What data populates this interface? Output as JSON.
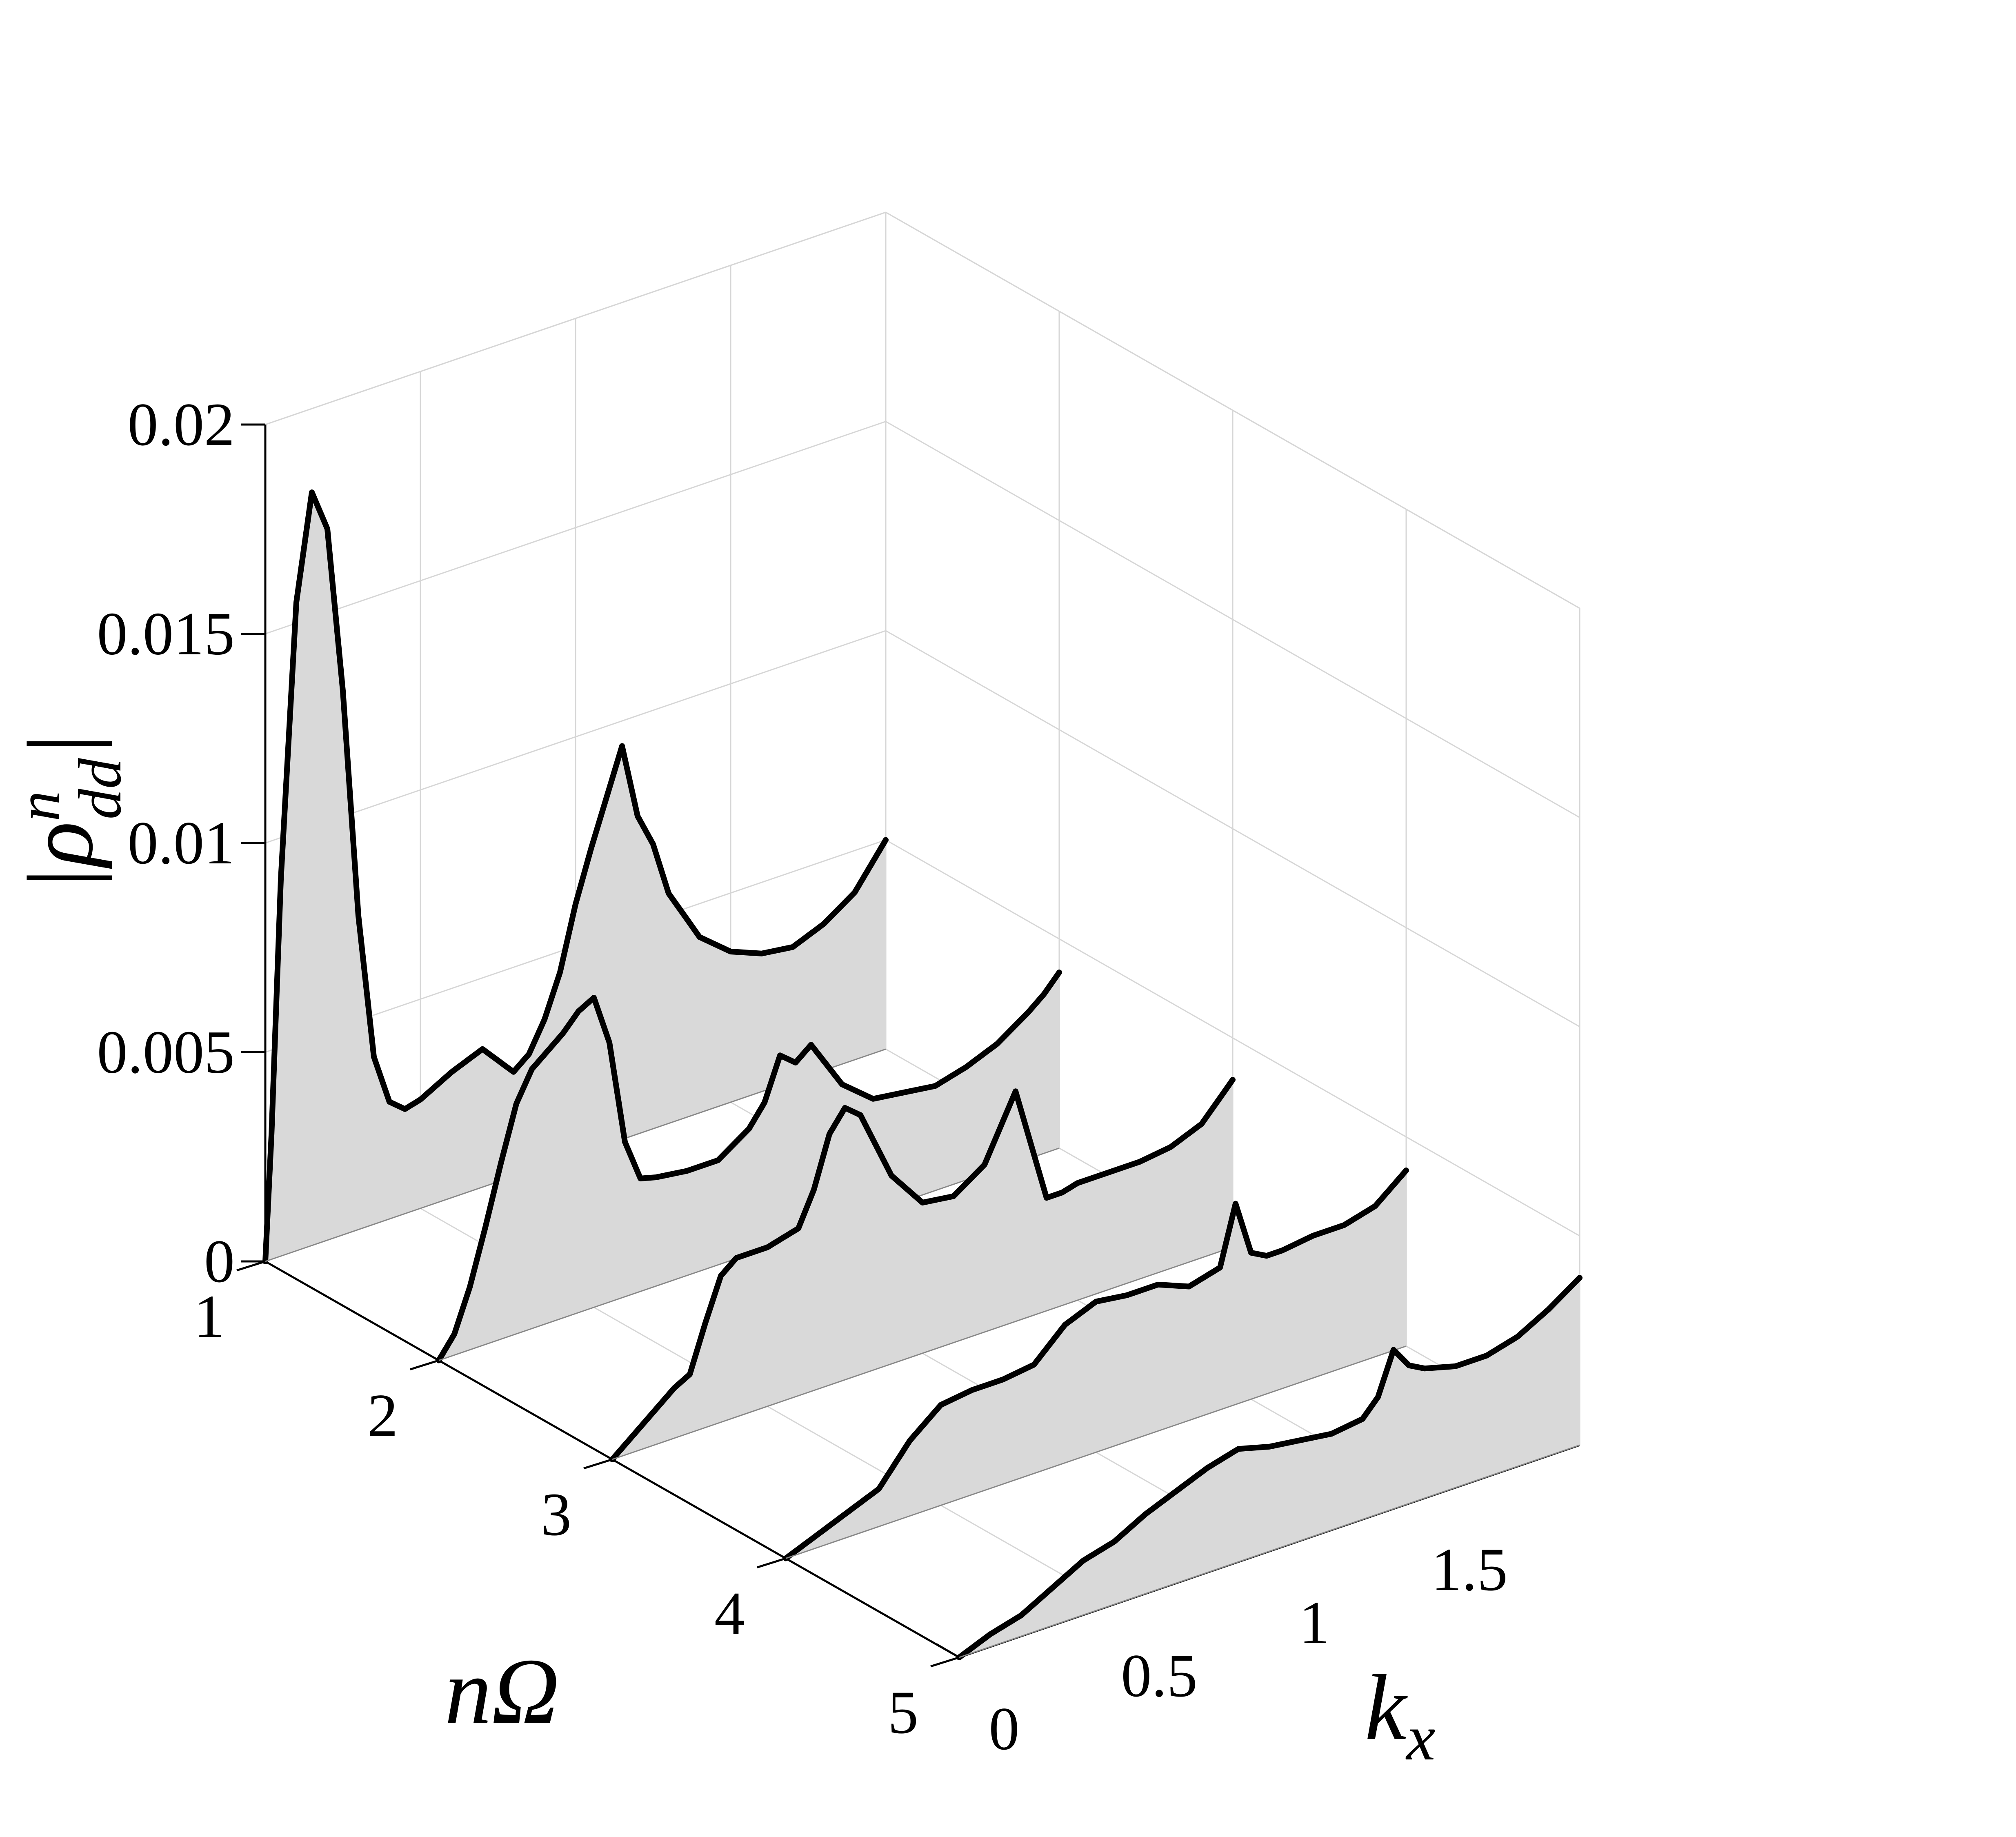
{
  "chart_data": {
    "type": "area",
    "view": "3d-waterfall",
    "title": "",
    "xlabel": "k_x",
    "ylabel": "nΩ",
    "zlabel": "|ρ_dd^n|",
    "axis_label_parts": {
      "x": {
        "base": "k",
        "sub": "x"
      },
      "y": {
        "text": "nΩ"
      },
      "z": {
        "open": "|",
        "base": "ρ",
        "sup": "n",
        "sub": "dd",
        "close": "|"
      }
    },
    "xlim": [
      0,
      2
    ],
    "ylim": [
      1,
      5
    ],
    "zlim": [
      0,
      0.02
    ],
    "x_ticks": [
      "0",
      "0.5",
      "1",
      "1.5"
    ],
    "x_tick_values": [
      0,
      0.5,
      1,
      1.5
    ],
    "y_ticks": [
      "1",
      "2",
      "3",
      "4",
      "5"
    ],
    "y_tick_values": [
      1,
      2,
      3,
      4,
      5
    ],
    "z_ticks": [
      "0",
      "0.005",
      "0.01",
      "0.015",
      "0.02"
    ],
    "z_tick_values": [
      0,
      0.005,
      0.01,
      0.015,
      0.02
    ],
    "grid": true,
    "fill_color": "#d9d9d9",
    "line_color": "#000000",
    "grid_color": "#d6d6d6",
    "series": [
      {
        "n": 1,
        "x": [
          0,
          0.02,
          0.05,
          0.1,
          0.15,
          0.2,
          0.25,
          0.3,
          0.35,
          0.4,
          0.45,
          0.5,
          0.6,
          0.7,
          0.8,
          0.85,
          0.9,
          0.95,
          1.0,
          1.05,
          1.1,
          1.15,
          1.2,
          1.25,
          1.3,
          1.4,
          1.5,
          1.6,
          1.7,
          1.8,
          1.9,
          1.95,
          2.0
        ],
        "y": [
          0,
          0.003,
          0.009,
          0.0155,
          0.018,
          0.017,
          0.013,
          0.0075,
          0.004,
          0.0028,
          0.0025,
          0.0026,
          0.003,
          0.0033,
          0.0025,
          0.0028,
          0.0035,
          0.0045,
          0.006,
          0.0072,
          0.0083,
          0.0094,
          0.0076,
          0.0068,
          0.0055,
          0.0042,
          0.0036,
          0.0033,
          0.0032,
          0.0035,
          0.004,
          0.0045,
          0.005
        ]
      },
      {
        "n": 2,
        "x": [
          0,
          0.05,
          0.1,
          0.15,
          0.2,
          0.25,
          0.3,
          0.35,
          0.4,
          0.45,
          0.5,
          0.55,
          0.6,
          0.65,
          0.7,
          0.8,
          0.9,
          1.0,
          1.05,
          1.1,
          1.15,
          1.2,
          1.3,
          1.4,
          1.5,
          1.6,
          1.7,
          1.8,
          1.9,
          1.95,
          2.0
        ],
        "y": [
          0,
          0.0005,
          0.0015,
          0.0028,
          0.0042,
          0.0055,
          0.0062,
          0.0065,
          0.0068,
          0.0072,
          0.0074,
          0.0062,
          0.0037,
          0.0027,
          0.0026,
          0.0025,
          0.0025,
          0.003,
          0.0035,
          0.0045,
          0.0042,
          0.0045,
          0.0033,
          0.0027,
          0.0026,
          0.0025,
          0.0027,
          0.003,
          0.0035,
          0.0038,
          0.0042
        ]
      },
      {
        "n": 3,
        "x": [
          0,
          0.1,
          0.2,
          0.25,
          0.3,
          0.35,
          0.4,
          0.5,
          0.6,
          0.65,
          0.7,
          0.75,
          0.8,
          0.9,
          1.0,
          1.1,
          1.2,
          1.3,
          1.4,
          1.45,
          1.5,
          1.55,
          1.6,
          1.7,
          1.8,
          1.9,
          1.95,
          2.0
        ],
        "y": [
          0,
          0.0006,
          0.0012,
          0.0014,
          0.0025,
          0.0035,
          0.0038,
          0.0038,
          0.004,
          0.0048,
          0.006,
          0.0065,
          0.0062,
          0.0045,
          0.0036,
          0.0035,
          0.004,
          0.0055,
          0.0027,
          0.0027,
          0.0028,
          0.0028,
          0.0028,
          0.0028,
          0.0029,
          0.0032,
          0.0036,
          0.004
        ]
      },
      {
        "n": 4,
        "x": [
          0,
          0.1,
          0.2,
          0.3,
          0.4,
          0.5,
          0.6,
          0.7,
          0.8,
          0.9,
          1.0,
          1.1,
          1.2,
          1.3,
          1.4,
          1.45,
          1.5,
          1.55,
          1.6,
          1.7,
          1.8,
          1.9,
          1.95,
          2.0
        ],
        "y": [
          0,
          0.0003,
          0.0006,
          0.0009,
          0.0018,
          0.0024,
          0.0025,
          0.0025,
          0.0026,
          0.0033,
          0.0036,
          0.0035,
          0.0035,
          0.0032,
          0.0034,
          0.0048,
          0.0035,
          0.0033,
          0.0033,
          0.0034,
          0.0034,
          0.0036,
          0.0039,
          0.0042
        ]
      },
      {
        "n": 5,
        "x": [
          0,
          0.1,
          0.2,
          0.3,
          0.4,
          0.5,
          0.6,
          0.7,
          0.8,
          0.9,
          1.0,
          1.1,
          1.2,
          1.3,
          1.35,
          1.4,
          1.45,
          1.5,
          1.6,
          1.7,
          1.8,
          1.9,
          2.0
        ],
        "y": [
          0,
          0.0003,
          0.0005,
          0.0009,
          0.0013,
          0.0015,
          0.0019,
          0.0022,
          0.0025,
          0.0027,
          0.0025,
          0.0024,
          0.0023,
          0.0024,
          0.0028,
          0.0038,
          0.0033,
          0.0031,
          0.0029,
          0.0029,
          0.0031,
          0.0035,
          0.004
        ]
      }
    ]
  }
}
